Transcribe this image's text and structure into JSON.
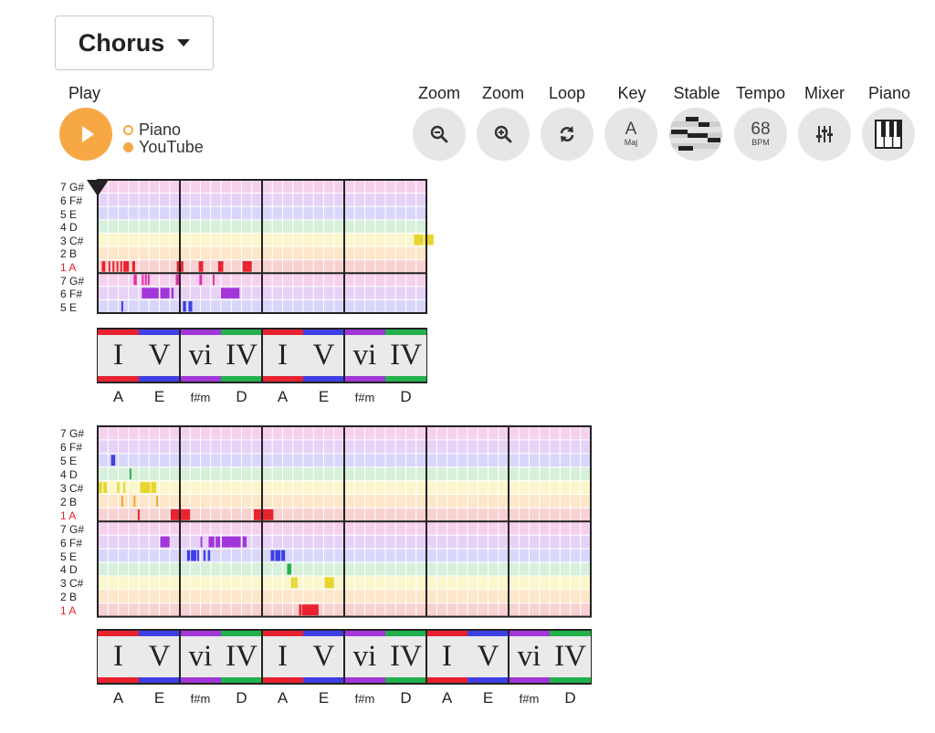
{
  "section": {
    "label": "Chorus"
  },
  "toolbar": {
    "play_label": "Play",
    "source_options": [
      {
        "label": "Piano",
        "selected": false
      },
      {
        "label": "YouTube",
        "selected": true
      }
    ],
    "zoom_out_label": "Zoom",
    "zoom_in_label": "Zoom",
    "loop_label": "Loop",
    "key_label": "Key",
    "key_value": "A",
    "key_mode": "Maj",
    "stable_label": "Stable",
    "tempo_label": "Tempo",
    "tempo_value": "68",
    "tempo_unit": "BPM",
    "mixer_label": "Mixer",
    "piano_label": "Piano"
  },
  "colors": {
    "accent": "#f7a845",
    "degree": {
      "1": "#e8232f",
      "2": "#f5a623",
      "3": "#e7d62b",
      "4": "#22b14c",
      "5": "#3f3fe6",
      "6": "#a236d8",
      "7": "#e62da6"
    },
    "chord": {
      "I": "#e8232f",
      "V": "#3f3fe6",
      "vi": "#a236d8",
      "IV": "#22b14c"
    }
  },
  "row_labels": {
    "upper": [
      "7 G#",
      "6 F#",
      "5 E",
      "4 D",
      "3 C#",
      "2 B",
      "1 A"
    ],
    "lower_short": [
      "7 G#",
      "6 F#",
      "5 E"
    ],
    "lower_full": [
      "7 G#",
      "6 F#",
      "5 E",
      "4 D",
      "3 C#",
      "2 B",
      "1 A"
    ]
  },
  "systems": [
    {
      "lower_rows": 3,
      "chords": [
        {
          "rn": "I",
          "name": "A"
        },
        {
          "rn": "V",
          "name": "E"
        },
        {
          "rn": "vi",
          "name": "f#m"
        },
        {
          "rn": "IV",
          "name": "D"
        },
        {
          "rn": "I",
          "name": "A"
        },
        {
          "rn": "V",
          "name": "E"
        },
        {
          "rn": "vi",
          "name": "f#m"
        },
        {
          "rn": "IV",
          "name": "D"
        }
      ],
      "notes": [
        {
          "row": 4,
          "s": 15.4,
          "e": 15.85
        },
        {
          "row": 4,
          "s": 15.9,
          "e": 16.35
        },
        {
          "row": 6,
          "s": 0.2,
          "e": 0.37
        },
        {
          "row": 6,
          "s": 0.52,
          "e": 0.6
        },
        {
          "row": 6,
          "s": 0.72,
          "e": 0.8
        },
        {
          "row": 6,
          "s": 0.92,
          "e": 1.0
        },
        {
          "row": 6,
          "s": 1.1,
          "e": 1.18
        },
        {
          "row": 6,
          "s": 1.25,
          "e": 1.52
        },
        {
          "row": 6,
          "s": 1.68,
          "e": 1.82
        },
        {
          "row": 6,
          "s": 3.85,
          "e": 4.05
        },
        {
          "row": 6,
          "s": 4.05,
          "e": 4.17
        },
        {
          "row": 6,
          "s": 4.92,
          "e": 5.13
        },
        {
          "row": 6,
          "s": 5.86,
          "e": 6.11
        },
        {
          "row": 6,
          "s": 7.05,
          "e": 7.5
        },
        {
          "row": 7,
          "s": 1.75,
          "e": 1.9
        },
        {
          "row": 7,
          "s": 2.15,
          "e": 2.22
        },
        {
          "row": 7,
          "s": 2.3,
          "e": 2.37
        },
        {
          "row": 7,
          "s": 2.44,
          "e": 2.52
        },
        {
          "row": 7,
          "s": 3.8,
          "e": 4.0
        },
        {
          "row": 7,
          "s": 4.95,
          "e": 5.08
        },
        {
          "row": 7,
          "s": 5.6,
          "e": 5.66
        },
        {
          "row": 8,
          "s": 2.15,
          "e": 2.97
        },
        {
          "row": 8,
          "s": 3.05,
          "e": 3.5
        },
        {
          "row": 8,
          "s": 3.58,
          "e": 3.7
        },
        {
          "row": 8,
          "s": 6.0,
          "e": 6.9
        },
        {
          "row": 9,
          "s": 1.15,
          "e": 1.2
        },
        {
          "row": 9,
          "s": 4.15,
          "e": 4.3
        },
        {
          "row": 9,
          "s": 4.42,
          "e": 4.6
        }
      ]
    },
    {
      "lower_rows": 7,
      "chords": [
        {
          "rn": "I",
          "name": "A"
        },
        {
          "rn": "V",
          "name": "E"
        },
        {
          "rn": "vi",
          "name": "f#m"
        },
        {
          "rn": "IV",
          "name": "D"
        },
        {
          "rn": "I",
          "name": "A"
        },
        {
          "rn": "V",
          "name": "E"
        },
        {
          "rn": "vi",
          "name": "f#m"
        },
        {
          "rn": "IV",
          "name": "D"
        },
        {
          "rn": "I",
          "name": "A"
        },
        {
          "rn": "V",
          "name": "E"
        },
        {
          "rn": "vi",
          "name": "f#m"
        },
        {
          "rn": "IV",
          "name": "D"
        }
      ],
      "notes": [
        {
          "row": 2,
          "s": 0.65,
          "e": 0.85
        },
        {
          "row": 3,
          "s": 1.55,
          "e": 1.62
        },
        {
          "row": 4,
          "s": 0.0,
          "e": 0.22
        },
        {
          "row": 4,
          "s": 0.28,
          "e": 0.45
        },
        {
          "row": 4,
          "s": 0.95,
          "e": 1.05
        },
        {
          "row": 4,
          "s": 1.25,
          "e": 1.32
        },
        {
          "row": 4,
          "s": 2.07,
          "e": 2.12
        },
        {
          "row": 4,
          "s": 2.15,
          "e": 2.55
        },
        {
          "row": 4,
          "s": 2.6,
          "e": 2.85
        },
        {
          "row": 5,
          "s": 1.15,
          "e": 1.22
        },
        {
          "row": 5,
          "s": 1.75,
          "e": 1.82
        },
        {
          "row": 5,
          "s": 2.85,
          "e": 2.92
        },
        {
          "row": 6,
          "s": 1.95,
          "e": 2.02
        },
        {
          "row": 6,
          "s": 3.55,
          "e": 4.5
        },
        {
          "row": 6,
          "s": 7.6,
          "e": 8.55
        },
        {
          "row": 8,
          "s": 3.05,
          "e": 3.5
        },
        {
          "row": 8,
          "s": 5.0,
          "e": 5.06
        },
        {
          "row": 8,
          "s": 5.4,
          "e": 5.68
        },
        {
          "row": 8,
          "s": 5.74,
          "e": 5.96
        },
        {
          "row": 8,
          "s": 6.04,
          "e": 6.96
        },
        {
          "row": 8,
          "s": 7.05,
          "e": 7.25
        },
        {
          "row": 9,
          "s": 4.35,
          "e": 4.5
        },
        {
          "row": 9,
          "s": 4.54,
          "e": 4.8
        },
        {
          "row": 9,
          "s": 4.84,
          "e": 4.93
        },
        {
          "row": 9,
          "s": 5.15,
          "e": 5.25
        },
        {
          "row": 9,
          "s": 5.36,
          "e": 5.48
        },
        {
          "row": 9,
          "s": 8.42,
          "e": 8.6
        },
        {
          "row": 9,
          "s": 8.64,
          "e": 8.9
        },
        {
          "row": 9,
          "s": 8.94,
          "e": 9.12
        },
        {
          "row": 10,
          "s": 9.22,
          "e": 9.42
        },
        {
          "row": 11,
          "s": 9.42,
          "e": 9.58
        },
        {
          "row": 11,
          "s": 9.6,
          "e": 9.72
        },
        {
          "row": 11,
          "s": 11.05,
          "e": 11.5
        },
        {
          "row": 13,
          "s": 9.8,
          "e": 9.92
        },
        {
          "row": 13,
          "s": 9.95,
          "e": 10.75
        }
      ]
    }
  ]
}
